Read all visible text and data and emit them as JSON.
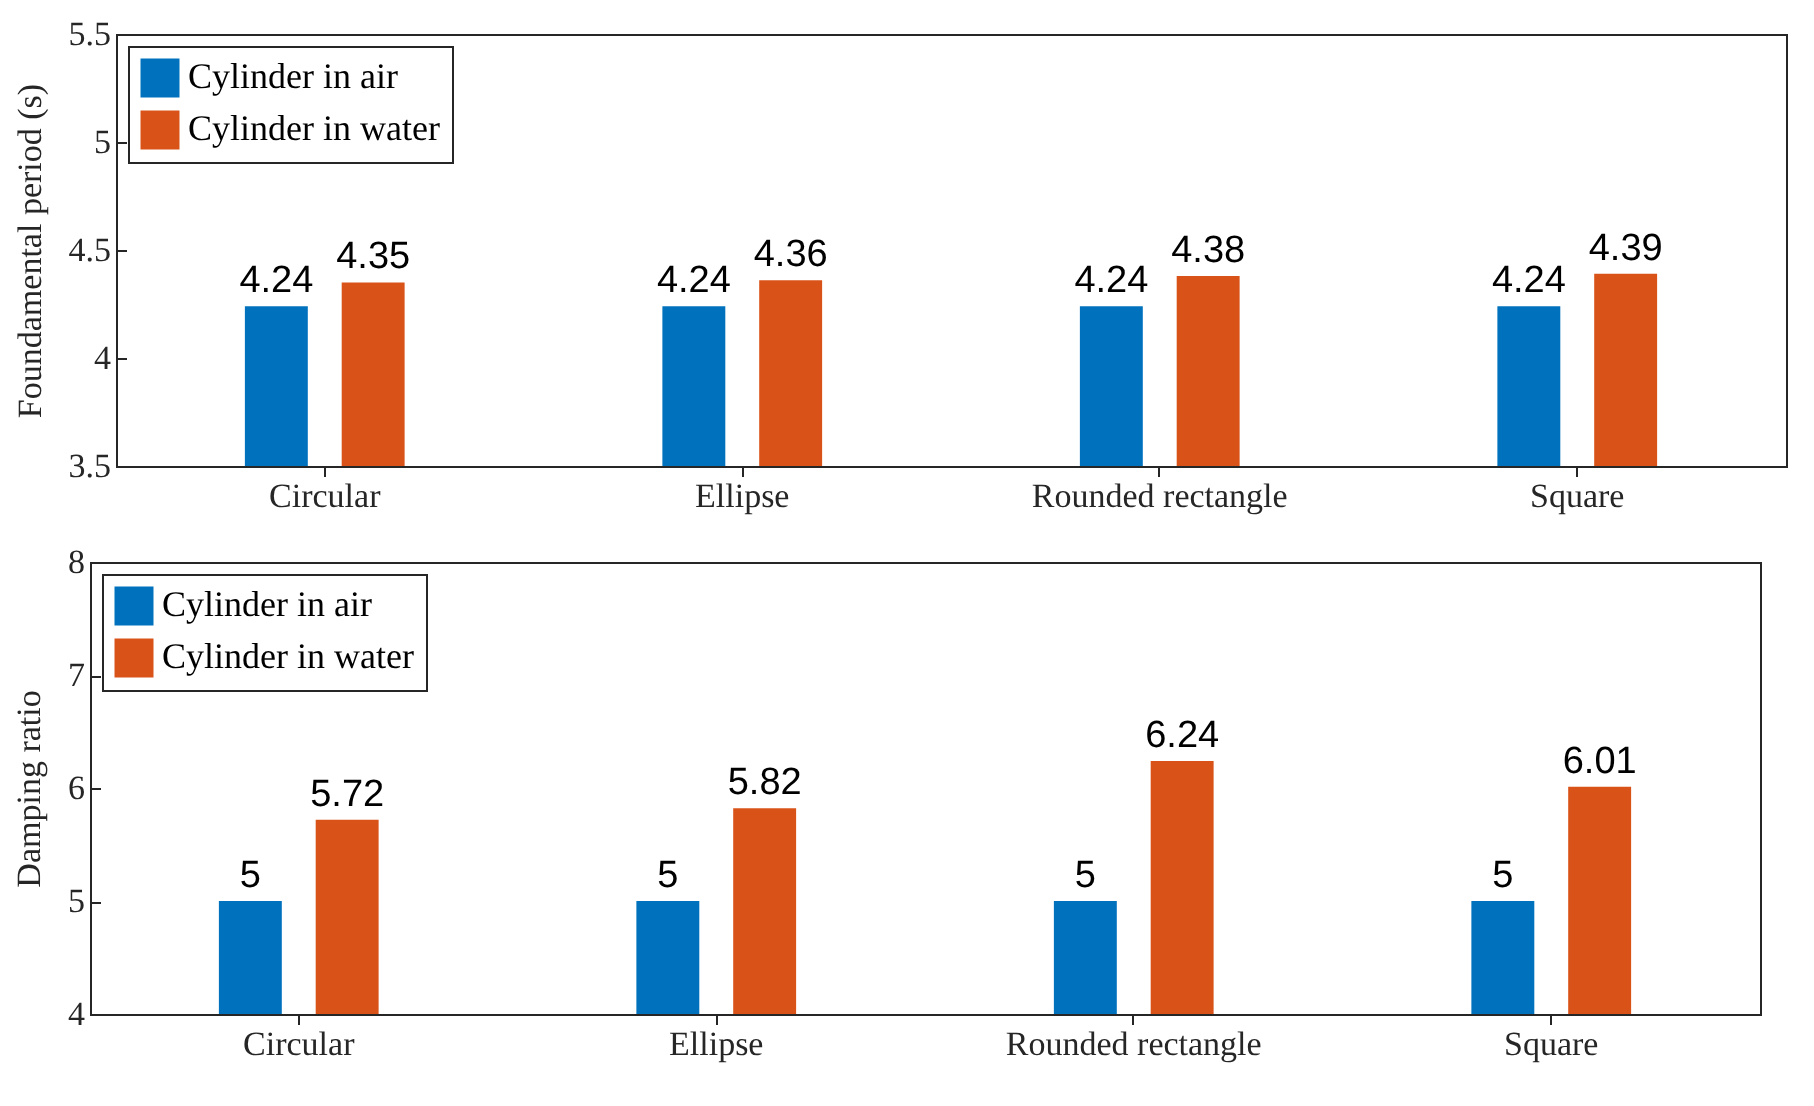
{
  "chart_data": [
    {
      "type": "bar",
      "ylabel": "Foundamental period (s)",
      "categories": [
        "Circular",
        "Ellipse",
        "Rounded rectangle",
        "Square"
      ],
      "series": [
        {
          "name": "Cylinder in air",
          "color": "#0072bd",
          "values": [
            4.24,
            4.24,
            4.24,
            4.24
          ]
        },
        {
          "name": "Cylinder in water",
          "color": "#d95319",
          "values": [
            4.35,
            4.36,
            4.38,
            4.39
          ]
        }
      ],
      "ylim": [
        3.5,
        5.5
      ],
      "yticks": [
        3.5,
        4,
        4.5,
        5,
        5.5
      ],
      "data_labels": true,
      "legend": "top left",
      "grid": false
    },
    {
      "type": "bar",
      "ylabel": "Damping ratio",
      "categories": [
        "Circular",
        "Ellipse",
        "Rounded rectangle",
        "Square"
      ],
      "series": [
        {
          "name": "Cylinder in air",
          "color": "#0072bd",
          "values": [
            5,
            5,
            5,
            5
          ]
        },
        {
          "name": "Cylinder in water",
          "color": "#d95319",
          "values": [
            5.72,
            5.82,
            6.24,
            6.01
          ]
        }
      ],
      "ylim": [
        4,
        8
      ],
      "yticks": [
        4,
        5,
        6,
        7,
        8
      ],
      "data_labels": true,
      "legend": "top left",
      "grid": false
    }
  ]
}
